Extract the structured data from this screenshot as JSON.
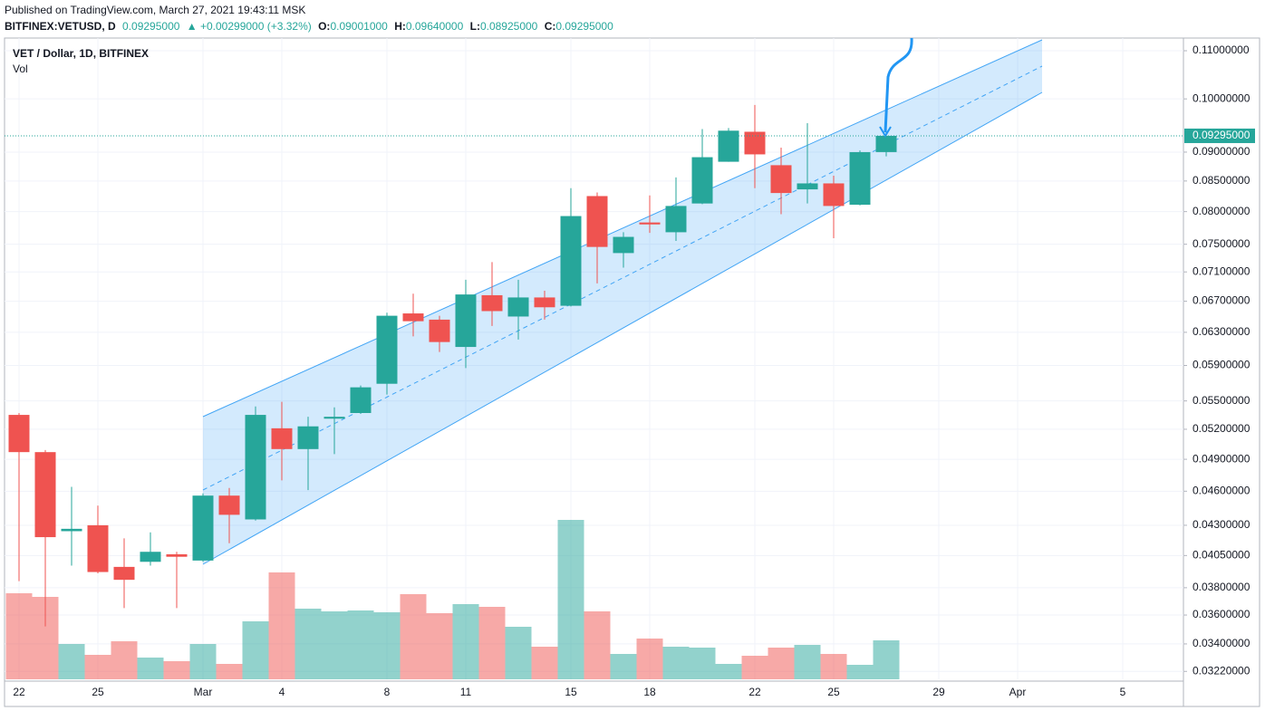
{
  "header": {
    "published": "Published on TradingView.com, March 27, 2021 19:43:11 MSK",
    "symbol": "BITFINEX:VETUSD, D",
    "price": "0.09295000",
    "change": "▲ +0.00299000 (+3.32%)",
    "o_label": "O:",
    "o": "0.09001000",
    "h_label": "H:",
    "h": "0.09640000",
    "l_label": "L:",
    "l": "0.08925000",
    "c_label": "C:",
    "c": "0.09295000"
  },
  "chart_data": {
    "type": "candlestick",
    "title": "VET / Dollar, 1D, BITFINEX",
    "volume_label": "Vol",
    "categories": [
      "22",
      null,
      null,
      "25",
      null,
      null,
      null,
      "Mar",
      null,
      null,
      "4",
      null,
      null,
      null,
      "8",
      null,
      null,
      "11",
      null,
      null,
      null,
      "15",
      null,
      null,
      "18",
      null,
      null,
      null,
      "22",
      null,
      null,
      "25",
      null,
      null,
      null,
      "29",
      null,
      null,
      "Apr",
      null,
      null,
      null,
      "5"
    ],
    "open": [
      0.0535,
      0.0497,
      0.0425,
      0.043,
      0.0396,
      0.04,
      0.0406,
      0.0401,
      0.0456,
      0.0435,
      0.0521,
      0.05,
      0.0531,
      0.0537,
      0.0569,
      0.0654,
      0.0646,
      0.0612,
      0.0678,
      0.065,
      0.0675,
      0.0664,
      0.0825,
      0.0737,
      0.0783,
      0.0768,
      0.0813,
      0.0883,
      0.0937,
      0.0877,
      0.0836,
      0.0846,
      0.0811,
      0.09001,
      null,
      null,
      null,
      null,
      null,
      null,
      null,
      null,
      null
    ],
    "high": [
      0.0537,
      0.0499,
      0.0464,
      0.0447,
      0.0419,
      0.0424,
      0.0408,
      0.0458,
      0.0463,
      0.0544,
      0.0549,
      0.0533,
      0.0543,
      0.0567,
      0.0655,
      0.068,
      0.0651,
      0.0699,
      0.0724,
      0.0699,
      0.0684,
      0.0838,
      0.0831,
      0.0768,
      0.0826,
      0.0856,
      0.0942,
      0.0944,
      0.0988,
      0.0908,
      0.0953,
      0.0859,
      0.0903,
      0.0964,
      null,
      null,
      null,
      null,
      null,
      null,
      null,
      null,
      null
    ],
    "low": [
      0.0385,
      0.0352,
      0.0397,
      0.0391,
      0.0365,
      0.0397,
      0.0365,
      0.04,
      0.0415,
      0.0434,
      0.047,
      0.0461,
      0.0495,
      0.0536,
      0.0557,
      0.0625,
      0.0606,
      0.0587,
      0.0638,
      0.0621,
      0.0646,
      0.0663,
      0.0694,
      0.0716,
      0.0767,
      0.0755,
      0.0812,
      0.0883,
      0.0838,
      0.0796,
      0.0813,
      0.0759,
      0.081,
      0.08925,
      null,
      null,
      null,
      null,
      null,
      null,
      null,
      null,
      null
    ],
    "close": [
      0.0497,
      0.042,
      0.0427,
      0.0392,
      0.0386,
      0.0408,
      0.0404,
      0.0456,
      0.0439,
      0.0535,
      0.05,
      0.0523,
      0.0533,
      0.0565,
      0.0651,
      0.0644,
      0.0618,
      0.0679,
      0.0657,
      0.0675,
      0.0662,
      0.0793,
      0.0746,
      0.0761,
      0.078,
      0.0809,
      0.0891,
      0.0939,
      0.0896,
      0.083,
      0.0846,
      0.0809,
      0.09,
      0.09295,
      null,
      null,
      null,
      null,
      null,
      null,
      null,
      null,
      null
    ],
    "volume": [
      95,
      91,
      39,
      27,
      42,
      24,
      20,
      39,
      17,
      64,
      118,
      78,
      75,
      76,
      74,
      94,
      73,
      83,
      80,
      58,
      36,
      176,
      75,
      28,
      45,
      36,
      35,
      17,
      26,
      35,
      38,
      28,
      16,
      43,
      null,
      null,
      null,
      null,
      null,
      null,
      null,
      null,
      null
    ],
    "up_color": "#26a69a",
    "down_color": "#ef5350",
    "log_y": true,
    "grid": true,
    "ylim": [
      0.0317,
      0.1128
    ],
    "yticks": [
      {
        "value": 0.0322,
        "label": "0.03220000"
      },
      {
        "value": 0.034,
        "label": "0.03400000"
      },
      {
        "value": 0.036,
        "label": "0.03600000"
      },
      {
        "value": 0.038,
        "label": "0.03800000"
      },
      {
        "value": 0.0405,
        "label": "0.04050000"
      },
      {
        "value": 0.043,
        "label": "0.04300000"
      },
      {
        "value": 0.046,
        "label": "0.04600000"
      },
      {
        "value": 0.049,
        "label": "0.04900000"
      },
      {
        "value": 0.052,
        "label": "0.05200000"
      },
      {
        "value": 0.055,
        "label": "0.05500000"
      },
      {
        "value": 0.059,
        "label": "0.05900000"
      },
      {
        "value": 0.063,
        "label": "0.06300000"
      },
      {
        "value": 0.067,
        "label": "0.06700000"
      },
      {
        "value": 0.071,
        "label": "0.07100000"
      },
      {
        "value": 0.075,
        "label": "0.07500000"
      },
      {
        "value": 0.08,
        "label": "0.08000000"
      },
      {
        "value": 0.085,
        "label": "0.08500000"
      },
      {
        "value": 0.09,
        "label": "0.09000000"
      },
      {
        "value": 0.1,
        "label": "0.10000000"
      },
      {
        "value": 0.11,
        "label": "0.11000000"
      }
    ],
    "last_price": {
      "value": 0.09295,
      "label": "0.09295000"
    }
  }
}
